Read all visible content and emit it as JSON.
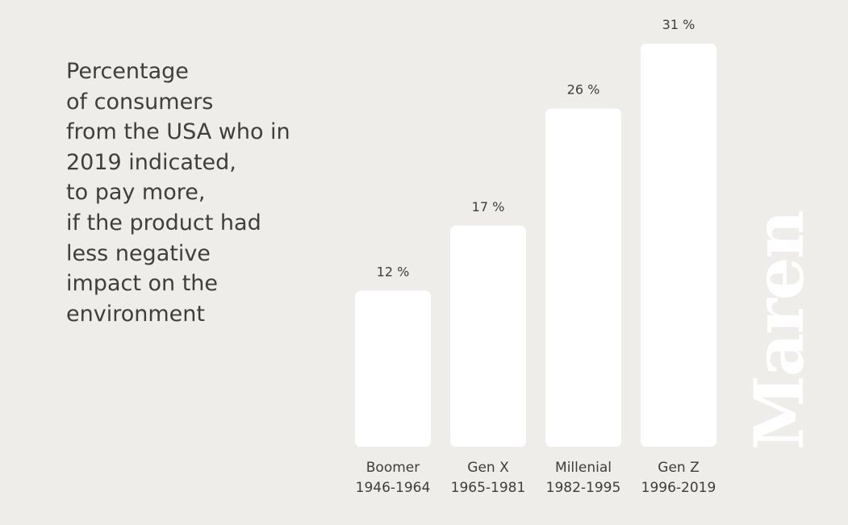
{
  "title_lines": [
    "Percentage",
    "of consumers",
    "from the USA who in",
    "2019 indicated,",
    "to pay more,",
    "if the product had",
    "less negative",
    "impact on the",
    "environment"
  ],
  "brand": {
    "logo_text": "Maren"
  },
  "colors": {
    "background": "#eeede9",
    "bar": "#ffffff",
    "text": "#3d3d3b"
  },
  "chart_data": {
    "type": "bar",
    "categories": [
      [
        "Boomer",
        "1946-1964"
      ],
      [
        "Gen X",
        "1965-1981"
      ],
      [
        "Millenial",
        "1982-1995"
      ],
      [
        "Gen Z",
        "1996-2019"
      ]
    ],
    "values": [
      12,
      17,
      26,
      31
    ],
    "value_labels": [
      "12 %",
      "17 %",
      "26 %",
      "31 %"
    ],
    "unit": "%",
    "ylim": [
      0,
      33
    ],
    "grid": false,
    "legend": "none"
  }
}
